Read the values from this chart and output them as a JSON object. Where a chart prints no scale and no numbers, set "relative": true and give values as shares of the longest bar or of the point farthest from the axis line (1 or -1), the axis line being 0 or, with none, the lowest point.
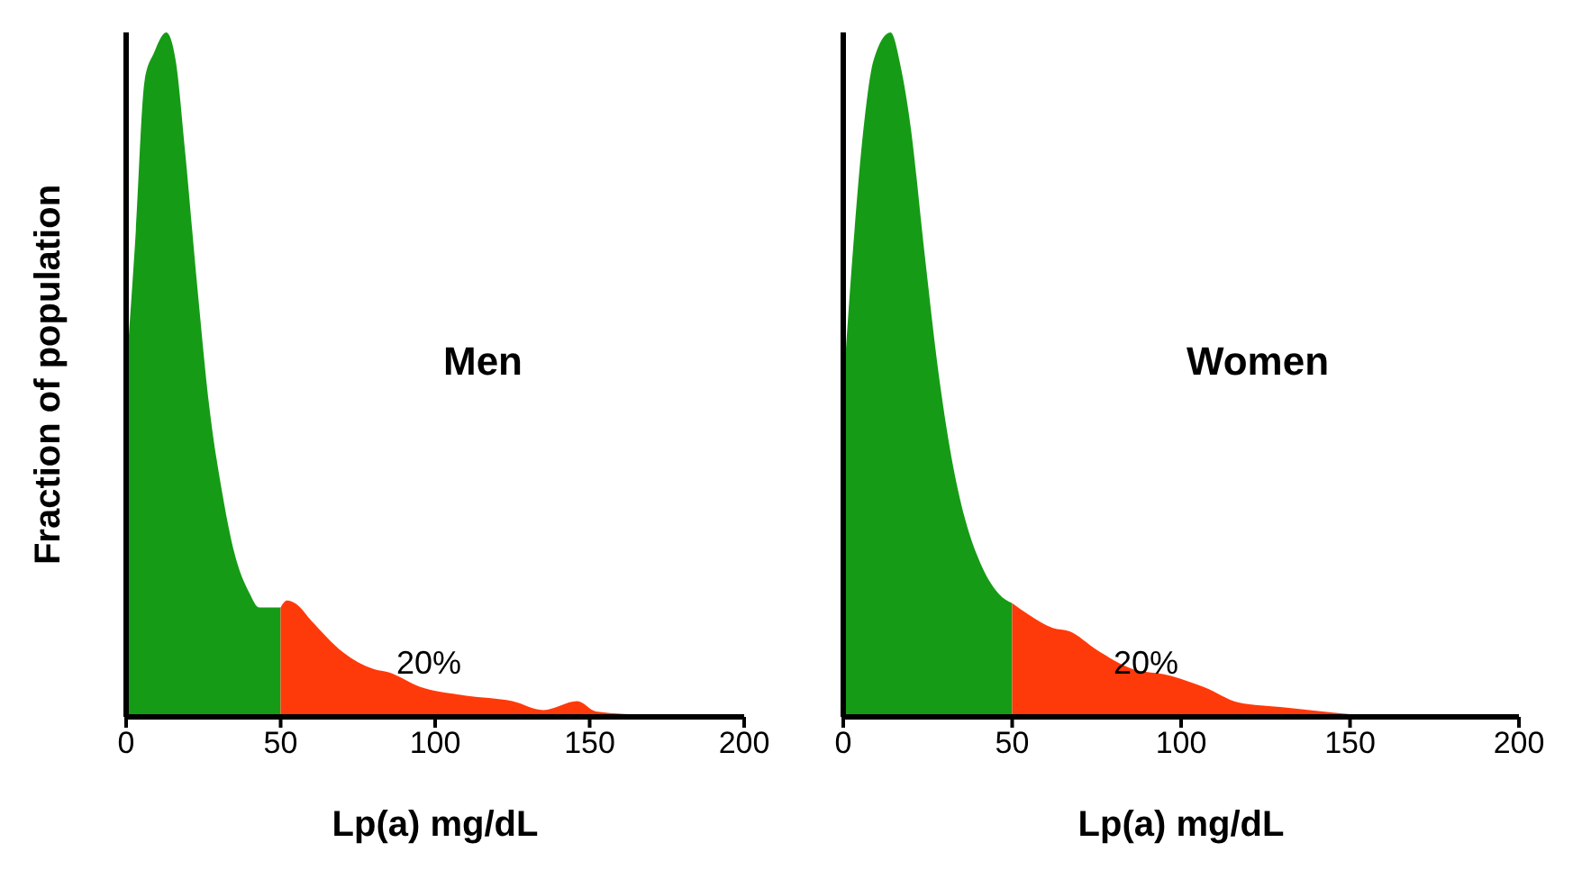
{
  "chart_data": [
    {
      "type": "area",
      "title": "Men",
      "xlabel": "Lp(a) mg/dL",
      "ylabel": "Fraction of population",
      "relative": true,
      "xlim": [
        0,
        200
      ],
      "xticks": [
        0,
        50,
        100,
        150,
        200
      ],
      "annotations": [
        "20%"
      ],
      "series": [
        {
          "color": "#169b16",
          "x": [
            0,
            3,
            6,
            9,
            13,
            16,
            19,
            23,
            27,
            31,
            35,
            40,
            43,
            50
          ],
          "values": [
            0.5,
            0.7,
            0.93,
            0.97,
            1,
            0.96,
            0.83,
            0.63,
            0.45,
            0.33,
            0.24,
            0.18,
            0.16,
            0.16
          ]
        },
        {
          "color": "#ff3a0a",
          "x": [
            50,
            52,
            55,
            60,
            70,
            80,
            85,
            95,
            110,
            125,
            135,
            146,
            152,
            170,
            175
          ],
          "values": [
            0.16,
            0.17,
            0.165,
            0.14,
            0.095,
            0.07,
            0.065,
            0.044,
            0.031,
            0.023,
            0.01,
            0.023,
            0.008,
            0.002,
            0
          ]
        }
      ]
    },
    {
      "type": "area",
      "title": "Women",
      "xlabel": "Lp(a) mg/dL",
      "relative": true,
      "xlim": [
        0,
        200
      ],
      "xticks": [
        0,
        50,
        100,
        150,
        200
      ],
      "annotations": [
        "20%"
      ],
      "series": [
        {
          "color": "#169b16",
          "x": [
            0,
            3,
            6,
            9,
            14,
            17,
            20,
            24,
            28,
            32,
            36,
            41,
            46,
            50
          ],
          "values": [
            0.48,
            0.69,
            0.86,
            0.96,
            1,
            0.95,
            0.86,
            0.68,
            0.51,
            0.38,
            0.29,
            0.22,
            0.18,
            0.166
          ]
        },
        {
          "color": "#ff3a0a",
          "x": [
            50,
            55,
            62,
            67,
            75,
            85,
            97,
            107,
            117,
            130,
            150,
            165
          ],
          "values": [
            0.166,
            0.149,
            0.13,
            0.125,
            0.098,
            0.071,
            0.06,
            0.043,
            0.021,
            0.014,
            0.004,
            0
          ]
        }
      ]
    }
  ]
}
